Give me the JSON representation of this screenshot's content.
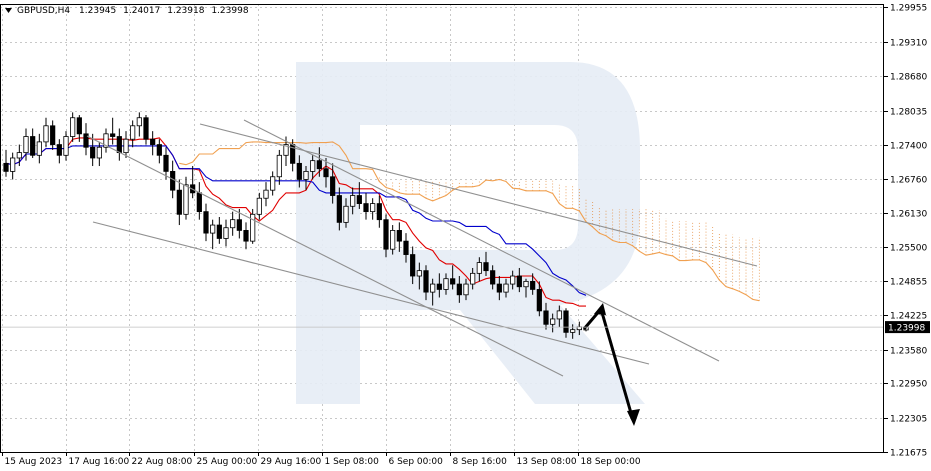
{
  "chart_data": {
    "type": "candlestick",
    "symbol": "GBPUSD,H4",
    "ohlc_header": {
      "open": "1.23945",
      "high": "1.24017",
      "low": "1.23918",
      "close": "1.23998"
    },
    "current_price": "1.23998",
    "y_axis_ticks": [
      "1.29955",
      "1.29310",
      "1.28680",
      "1.28035",
      "1.27400",
      "1.26760",
      "1.26130",
      "1.25500",
      "1.24855",
      "1.24225",
      "1.23580",
      "1.22950",
      "1.22305",
      "1.21675"
    ],
    "x_axis_ticks": [
      "15 Aug 2023",
      "17 Aug 16:00",
      "22 Aug 08:00",
      "25 Aug 00:00",
      "29 Aug 16:00",
      "1 Sep 08:00",
      "6 Sep 00:00",
      "8 Sep 16:00",
      "13 Sep 08:00",
      "18 Sep 00:00"
    ],
    "ylim": [
      1.2167,
      1.3002
    ],
    "grid": true,
    "bars": [
      [
        1.2705,
        1.273,
        1.268,
        1.269
      ],
      [
        1.269,
        1.2725,
        1.2675,
        1.2715
      ],
      [
        1.2715,
        1.274,
        1.27,
        1.2725
      ],
      [
        1.2725,
        1.277,
        1.271,
        1.2755
      ],
      [
        1.2755,
        1.277,
        1.2715,
        1.272
      ],
      [
        1.272,
        1.276,
        1.2705,
        1.2745
      ],
      [
        1.2745,
        1.279,
        1.2735,
        1.2775
      ],
      [
        1.2775,
        1.2785,
        1.273,
        1.274
      ],
      [
        1.274,
        1.275,
        1.2705,
        1.272
      ],
      [
        1.272,
        1.2765,
        1.271,
        1.2755
      ],
      [
        1.2755,
        1.28,
        1.2745,
        1.279
      ],
      [
        1.279,
        1.2795,
        1.2745,
        1.276
      ],
      [
        1.276,
        1.278,
        1.272,
        1.2735
      ],
      [
        1.2735,
        1.276,
        1.27,
        1.2715
      ],
      [
        1.2715,
        1.2745,
        1.27,
        1.2735
      ],
      [
        1.2735,
        1.277,
        1.2725,
        1.276
      ],
      [
        1.276,
        1.279,
        1.274,
        1.2755
      ],
      [
        1.2755,
        1.277,
        1.271,
        1.2725
      ],
      [
        1.2725,
        1.2765,
        1.2715,
        1.275
      ],
      [
        1.275,
        1.2785,
        1.2735,
        1.2775
      ],
      [
        1.2775,
        1.28,
        1.2755,
        1.279
      ],
      [
        1.279,
        1.2795,
        1.274,
        1.275
      ],
      [
        1.275,
        1.2765,
        1.272,
        1.274
      ],
      [
        1.274,
        1.275,
        1.2705,
        1.272
      ],
      [
        1.272,
        1.2735,
        1.2675,
        1.269
      ],
      [
        1.269,
        1.271,
        1.264,
        1.2655
      ],
      [
        1.2655,
        1.2675,
        1.259,
        1.261
      ],
      [
        1.261,
        1.268,
        1.26,
        1.2665
      ],
      [
        1.2665,
        1.27,
        1.264,
        1.265
      ],
      [
        1.265,
        1.267,
        1.26,
        1.2615
      ],
      [
        1.2615,
        1.263,
        1.256,
        1.2575
      ],
      [
        1.2575,
        1.26,
        1.2545,
        1.259
      ],
      [
        1.259,
        1.2605,
        1.2555,
        1.2565
      ],
      [
        1.2565,
        1.26,
        1.255,
        1.2585
      ],
      [
        1.2585,
        1.2615,
        1.257,
        1.26
      ],
      [
        1.26,
        1.262,
        1.2565,
        1.258
      ],
      [
        1.258,
        1.2595,
        1.2545,
        1.256
      ],
      [
        1.256,
        1.262,
        1.2555,
        1.261
      ],
      [
        1.261,
        1.265,
        1.26,
        1.264
      ],
      [
        1.264,
        1.267,
        1.2625,
        1.2655
      ],
      [
        1.2655,
        1.269,
        1.2645,
        1.268
      ],
      [
        1.268,
        1.273,
        1.2665,
        1.272
      ],
      [
        1.272,
        1.2755,
        1.27,
        1.274
      ],
      [
        1.274,
        1.275,
        1.269,
        1.2705
      ],
      [
        1.2705,
        1.272,
        1.266,
        1.2675
      ],
      [
        1.2675,
        1.27,
        1.2655,
        1.269
      ],
      [
        1.269,
        1.272,
        1.2675,
        1.271
      ],
      [
        1.271,
        1.2735,
        1.268,
        1.2695
      ],
      [
        1.2695,
        1.2715,
        1.266,
        1.268
      ],
      [
        1.268,
        1.2705,
        1.263,
        1.2645
      ],
      [
        1.2645,
        1.266,
        1.258,
        1.2595
      ],
      [
        1.2595,
        1.264,
        1.2585,
        1.2625
      ],
      [
        1.2625,
        1.266,
        1.261,
        1.2645
      ],
      [
        1.2645,
        1.267,
        1.262,
        1.263
      ],
      [
        1.263,
        1.265,
        1.26,
        1.2615
      ],
      [
        1.2615,
        1.264,
        1.26,
        1.263
      ],
      [
        1.263,
        1.2645,
        1.2585,
        1.26
      ],
      [
        1.26,
        1.261,
        1.253,
        1.2545
      ],
      [
        1.2545,
        1.259,
        1.2535,
        1.258
      ],
      [
        1.258,
        1.2595,
        1.254,
        1.256
      ],
      [
        1.256,
        1.2575,
        1.252,
        1.2535
      ],
      [
        1.2535,
        1.255,
        1.248,
        1.2495
      ],
      [
        1.2495,
        1.252,
        1.247,
        1.2505
      ],
      [
        1.2505,
        1.2515,
        1.245,
        1.2465
      ],
      [
        1.2465,
        1.249,
        1.244,
        1.248
      ],
      [
        1.248,
        1.25,
        1.2455,
        1.247
      ],
      [
        1.247,
        1.25,
        1.246,
        1.249
      ],
      [
        1.249,
        1.2515,
        1.247,
        1.248
      ],
      [
        1.248,
        1.2495,
        1.2445,
        1.246
      ],
      [
        1.246,
        1.249,
        1.245,
        1.248
      ],
      [
        1.248,
        1.251,
        1.247,
        1.25
      ],
      [
        1.25,
        1.253,
        1.2485,
        1.252
      ],
      [
        1.252,
        1.254,
        1.2495,
        1.2505
      ],
      [
        1.2505,
        1.2515,
        1.247,
        1.248
      ],
      [
        1.248,
        1.2495,
        1.245,
        1.2465
      ],
      [
        1.2465,
        1.249,
        1.2455,
        1.248
      ],
      [
        1.248,
        1.2505,
        1.247,
        1.2495
      ],
      [
        1.2495,
        1.251,
        1.2465,
        1.2475
      ],
      [
        1.2475,
        1.249,
        1.2455,
        1.2485
      ],
      [
        1.2485,
        1.25,
        1.246,
        1.247
      ],
      [
        1.247,
        1.2485,
        1.242,
        1.243
      ],
      [
        1.243,
        1.2445,
        1.2395,
        1.2405
      ],
      [
        1.2405,
        1.2425,
        1.239,
        1.2415
      ],
      [
        1.2415,
        1.244,
        1.24,
        1.243
      ],
      [
        1.243,
        1.2435,
        1.238,
        1.239
      ],
      [
        1.239,
        1.2405,
        1.2378,
        1.2395
      ],
      [
        1.2395,
        1.241,
        1.2385,
        1.24
      ],
      [
        1.23945,
        1.24017,
        1.23918,
        1.23998
      ]
    ]
  }
}
